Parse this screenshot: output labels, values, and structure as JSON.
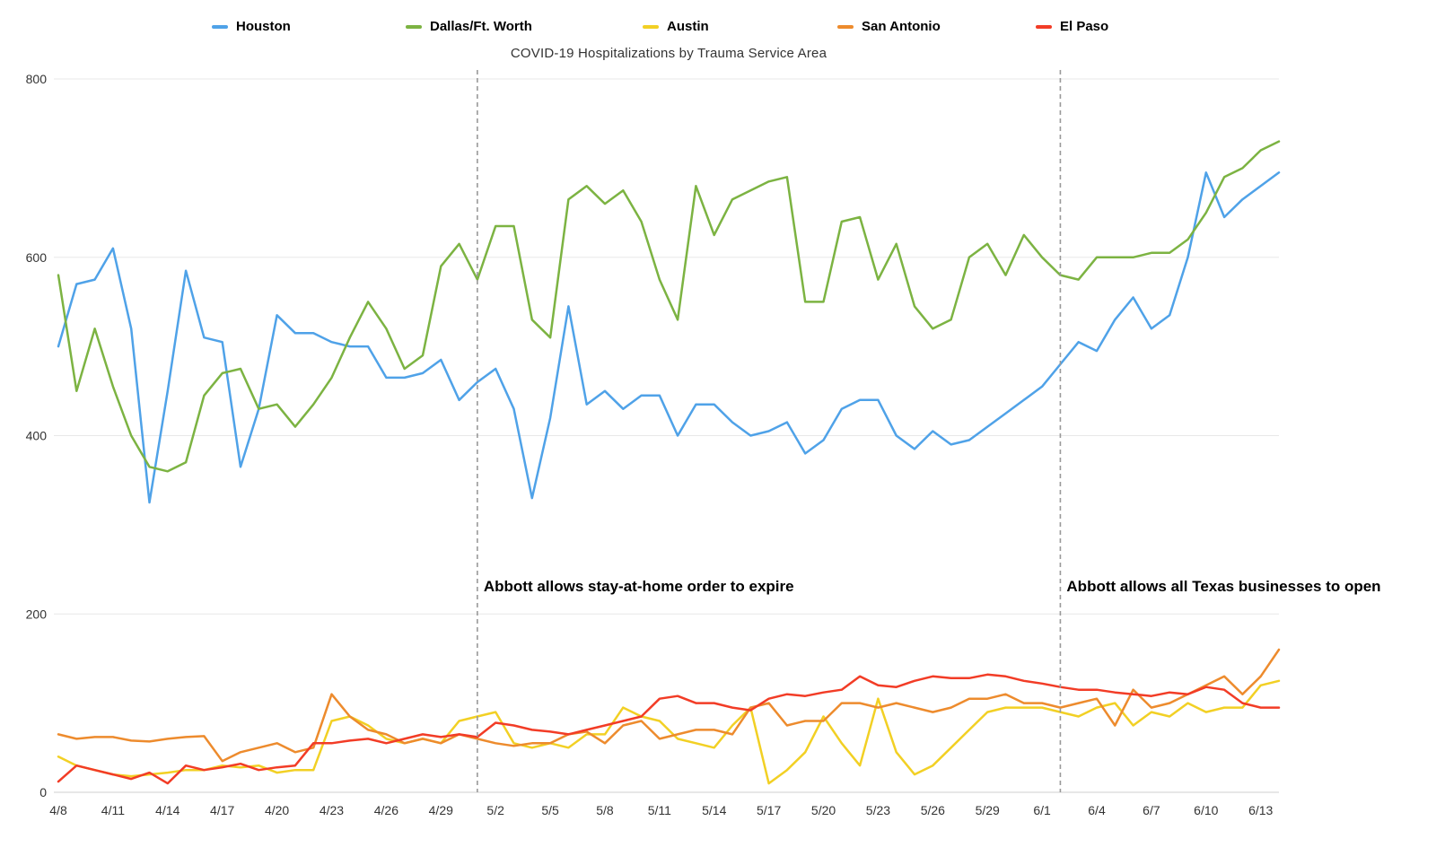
{
  "chart_data": {
    "type": "line",
    "title": "COVID-19 Hospitalizations by Trauma Service Area",
    "legend_position": "top",
    "grid": true,
    "grid_color": "#e8e8e8",
    "axis_color": "#cfcfcf",
    "annotation_line_color": "#999999",
    "ylim": [
      0,
      800
    ],
    "y_ticks": [
      0,
      200,
      400,
      600,
      800
    ],
    "x_tick_step": 3,
    "x_tick_labels": [
      "4/8",
      "4/11",
      "4/14",
      "4/17",
      "4/20",
      "4/23",
      "4/26",
      "4/29",
      "5/2",
      "5/5",
      "5/8",
      "5/11",
      "5/14",
      "5/17",
      "5/20",
      "5/23",
      "5/26",
      "5/29",
      "6/1",
      "6/4",
      "6/7",
      "6/10",
      "6/13"
    ],
    "x": [
      "4/8",
      "4/9",
      "4/10",
      "4/11",
      "4/12",
      "4/13",
      "4/14",
      "4/15",
      "4/16",
      "4/17",
      "4/18",
      "4/19",
      "4/20",
      "4/21",
      "4/22",
      "4/23",
      "4/24",
      "4/25",
      "4/26",
      "4/27",
      "4/28",
      "4/29",
      "4/30",
      "5/1",
      "5/2",
      "5/3",
      "5/4",
      "5/5",
      "5/6",
      "5/7",
      "5/8",
      "5/9",
      "5/10",
      "5/11",
      "5/12",
      "5/13",
      "5/14",
      "5/15",
      "5/16",
      "5/17",
      "5/18",
      "5/19",
      "5/20",
      "5/21",
      "5/22",
      "5/23",
      "5/24",
      "5/25",
      "5/26",
      "5/27",
      "5/28",
      "5/29",
      "5/30",
      "5/31",
      "6/1",
      "6/2",
      "6/3",
      "6/4",
      "6/5",
      "6/6",
      "6/7",
      "6/8",
      "6/9",
      "6/10",
      "6/11",
      "6/12",
      "6/13",
      "6/14"
    ],
    "series": [
      {
        "name": "Houston",
        "color": "#4fa2e8",
        "values": [
          500,
          570,
          575,
          610,
          520,
          325,
          450,
          585,
          510,
          505,
          365,
          430,
          535,
          515,
          515,
          505,
          500,
          500,
          465,
          465,
          470,
          485,
          440,
          460,
          475,
          430,
          330,
          420,
          545,
          435,
          450,
          430,
          445,
          445,
          400,
          435,
          435,
          415,
          400,
          405,
          415,
          380,
          395,
          430,
          440,
          440,
          400,
          385,
          405,
          390,
          395,
          410,
          425,
          440,
          455,
          480,
          505,
          495,
          530,
          555,
          520,
          535,
          600,
          695,
          645,
          665,
          680,
          695
        ]
      },
      {
        "name": "Dallas/Ft. Worth",
        "color": "#7cb342",
        "values": [
          580,
          450,
          520,
          455,
          400,
          365,
          360,
          370,
          445,
          470,
          475,
          430,
          435,
          410,
          435,
          465,
          510,
          550,
          520,
          475,
          490,
          590,
          615,
          575,
          635,
          635,
          530,
          510,
          665,
          680,
          660,
          675,
          640,
          575,
          530,
          680,
          625,
          665,
          675,
          685,
          690,
          550,
          550,
          640,
          645,
          575,
          615,
          545,
          520,
          530,
          600,
          615,
          580,
          625,
          600,
          580,
          575,
          600,
          600,
          600,
          605,
          605,
          620,
          650,
          690,
          700,
          720,
          730
        ]
      },
      {
        "name": "Austin",
        "color": "#f2d024",
        "values": [
          40,
          30,
          25,
          20,
          18,
          20,
          22,
          25,
          25,
          30,
          28,
          30,
          22,
          25,
          25,
          80,
          85,
          75,
          60,
          55,
          60,
          55,
          80,
          85,
          90,
          55,
          50,
          55,
          50,
          65,
          65,
          95,
          85,
          80,
          60,
          55,
          50,
          75,
          95,
          10,
          25,
          45,
          85,
          55,
          30,
          105,
          45,
          20,
          30,
          50,
          70,
          90,
          95,
          95,
          95,
          90,
          85,
          95,
          100,
          75,
          90,
          85,
          100,
          90,
          95,
          95,
          120,
          125
        ]
      },
      {
        "name": "San Antonio",
        "color": "#ed8b2d",
        "values": [
          65,
          60,
          62,
          62,
          58,
          57,
          60,
          62,
          63,
          35,
          45,
          50,
          55,
          45,
          50,
          110,
          85,
          70,
          65,
          55,
          60,
          55,
          65,
          60,
          55,
          52,
          55,
          55,
          65,
          68,
          55,
          75,
          80,
          60,
          65,
          70,
          70,
          65,
          95,
          100,
          75,
          80,
          80,
          100,
          100,
          95,
          100,
          95,
          90,
          95,
          105,
          105,
          110,
          100,
          100,
          95,
          100,
          105,
          75,
          115,
          95,
          100,
          110,
          120,
          130,
          110,
          130,
          160
        ]
      },
      {
        "name": "El Paso",
        "color": "#f23c26",
        "values": [
          12,
          30,
          25,
          20,
          15,
          22,
          10,
          30,
          25,
          28,
          32,
          25,
          28,
          30,
          55,
          55,
          58,
          60,
          55,
          60,
          65,
          62,
          65,
          62,
          78,
          75,
          70,
          68,
          65,
          70,
          75,
          80,
          85,
          105,
          108,
          100,
          100,
          95,
          92,
          105,
          110,
          108,
          112,
          115,
          130,
          120,
          118,
          125,
          130,
          128,
          128,
          132,
          130,
          125,
          122,
          118,
          115,
          115,
          112,
          110,
          108,
          112,
          110,
          118,
          115,
          100,
          95,
          95
        ]
      }
    ],
    "annotations": [
      {
        "x": "5/1",
        "label": "Abbott allows stay-at-home order to expire"
      },
      {
        "x": "6/2",
        "label": "Abbott allows all Texas businesses to open"
      }
    ]
  }
}
